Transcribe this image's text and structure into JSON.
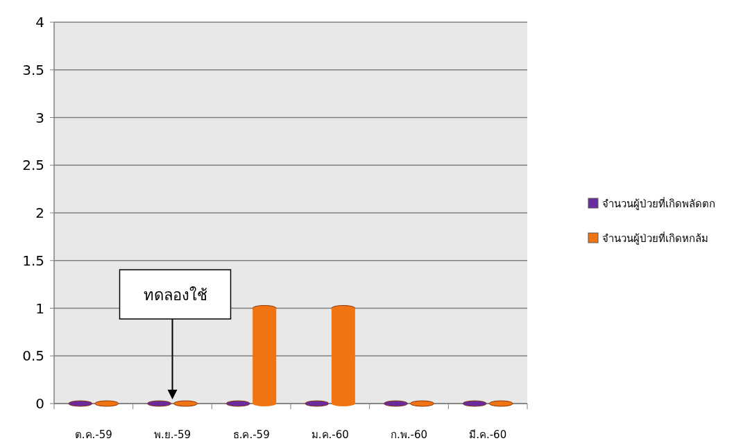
{
  "chart_data": {
    "type": "bar",
    "categories": [
      "ต.ค.-59",
      "พ.ย.-59",
      "ธ.ค.-59",
      "ม.ค.-60",
      "ก.พ.-60",
      "มี.ค.-60"
    ],
    "series": [
      {
        "name": "จำนวนผู้ป่วยที่เกิดพลัดตก",
        "color": "#6a2c9c",
        "values": [
          0,
          0,
          0,
          0,
          0,
          0
        ]
      },
      {
        "name": "จำนวนผู้ป่วยที่เกิดหกล้ม",
        "color": "#f07412",
        "values": [
          0,
          0,
          1,
          1,
          0,
          0
        ]
      }
    ],
    "ylim": [
      0,
      4
    ],
    "yticks": [
      0,
      0.5,
      1,
      1.5,
      2,
      2.5,
      3,
      3.5,
      4
    ],
    "grid": "y",
    "legend": "right",
    "annotations": [
      "ทดลองใช้"
    ]
  }
}
